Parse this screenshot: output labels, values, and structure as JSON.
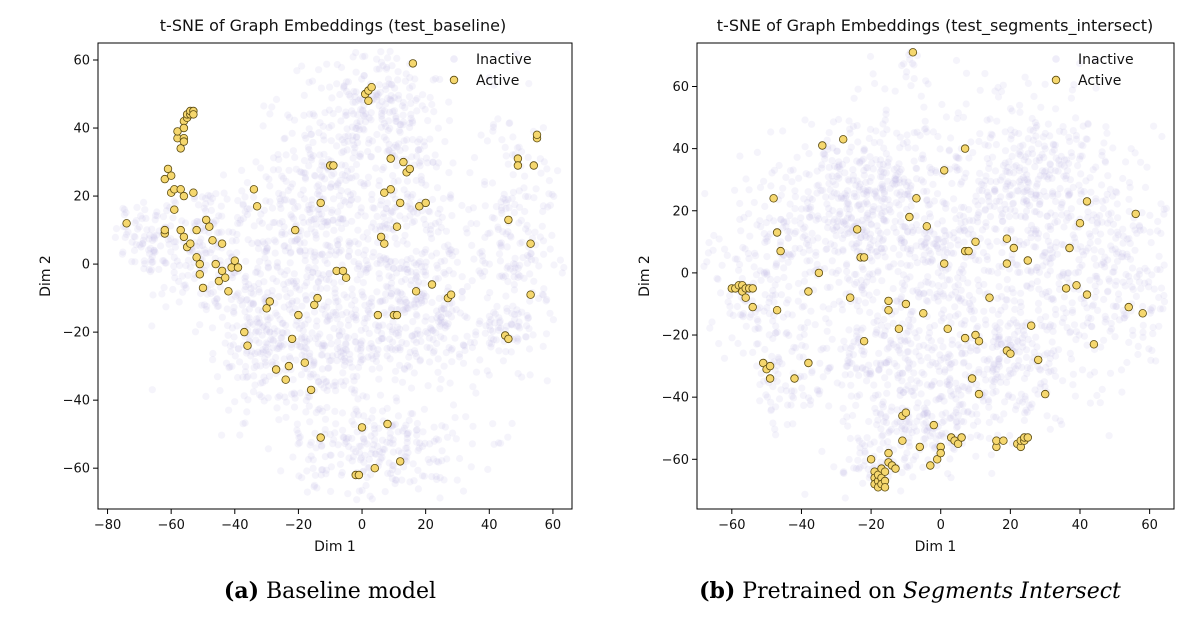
{
  "chart_data": [
    {
      "type": "scatter",
      "title": "t-SNE of Graph Embeddings (test_baseline)",
      "xlabel": "Dim 1",
      "ylabel": "Dim 2",
      "xlim": [
        -83,
        66
      ],
      "ylim": [
        -72,
        65
      ],
      "xticks": [
        -80,
        -60,
        -40,
        -20,
        0,
        20,
        40,
        60
      ],
      "yticks": [
        -60,
        -40,
        -20,
        0,
        20,
        40,
        60
      ],
      "grid": false,
      "legend_placement": "top-right",
      "series": [
        {
          "name": "Inactive",
          "color": "#bfb8e6",
          "count_style": "faint-cloud",
          "clusters": [
            {
              "cx": -68,
              "cy": 8,
              "sx": 5,
              "sy": 6,
              "n": 60
            },
            {
              "cx": -52,
              "cy": 5,
              "sx": 9,
              "sy": 10,
              "n": 160
            },
            {
              "cx": -30,
              "cy": -5,
              "sx": 9,
              "sy": 18,
              "n": 230
            },
            {
              "cx": -12,
              "cy": 20,
              "sx": 9,
              "sy": 16,
              "n": 240
            },
            {
              "cx": 5,
              "cy": 48,
              "sx": 10,
              "sy": 9,
              "n": 170
            },
            {
              "cx": 12,
              "cy": 12,
              "sx": 12,
              "sy": 18,
              "n": 320
            },
            {
              "cx": -12,
              "cy": -25,
              "sx": 10,
              "sy": 12,
              "n": 230
            },
            {
              "cx": 18,
              "cy": -18,
              "sx": 12,
              "sy": 12,
              "n": 240
            },
            {
              "cx": 48,
              "cy": 10,
              "sx": 7,
              "sy": 18,
              "n": 190
            },
            {
              "cx": 45,
              "cy": -20,
              "sx": 4,
              "sy": 5,
              "n": 40
            },
            {
              "cx": 7,
              "cy": -55,
              "sx": 14,
              "sy": 7,
              "n": 220
            },
            {
              "cx": -33,
              "cy": -25,
              "sx": 6,
              "sy": 8,
              "n": 90
            }
          ]
        },
        {
          "name": "Active",
          "color": "#f5d76e",
          "edgecolor": "#5a4a10",
          "points": [
            [
              -74,
              12
            ],
            [
              -62,
              9
            ],
            [
              -62,
              10
            ],
            [
              -62,
              25
            ],
            [
              -61,
              28
            ],
            [
              -60,
              26
            ],
            [
              -60,
              21
            ],
            [
              -59,
              22
            ],
            [
              -59,
              16
            ],
            [
              -58,
              37
            ],
            [
              -58,
              39
            ],
            [
              -57,
              34
            ],
            [
              -56,
              37
            ],
            [
              -56,
              36
            ],
            [
              -56,
              42
            ],
            [
              -56,
              40
            ],
            [
              -55,
              43
            ],
            [
              -55,
              44
            ],
            [
              -54,
              44
            ],
            [
              -54,
              45
            ],
            [
              -53,
              45
            ],
            [
              -53,
              44
            ],
            [
              -57,
              22
            ],
            [
              -56,
              20
            ],
            [
              -57,
              10
            ],
            [
              -56,
              8
            ],
            [
              -55,
              5
            ],
            [
              -54,
              6
            ],
            [
              -53,
              21
            ],
            [
              -52,
              10
            ],
            [
              -52,
              2
            ],
            [
              -51,
              0
            ],
            [
              -51,
              -3
            ],
            [
              -50,
              -7
            ],
            [
              -49,
              13
            ],
            [
              -48,
              11
            ],
            [
              -47,
              7
            ],
            [
              -46,
              0
            ],
            [
              -45,
              -5
            ],
            [
              -44,
              6
            ],
            [
              -44,
              -2
            ],
            [
              -43,
              -4
            ],
            [
              -42,
              -8
            ],
            [
              -41,
              -1
            ],
            [
              -40,
              1
            ],
            [
              -39,
              -1
            ],
            [
              -37,
              -20
            ],
            [
              -36,
              -24
            ],
            [
              -34,
              22
            ],
            [
              -33,
              17
            ],
            [
              -30,
              -13
            ],
            [
              -29,
              -11
            ],
            [
              -27,
              -31
            ],
            [
              -24,
              -34
            ],
            [
              -23,
              -30
            ],
            [
              -22,
              -22
            ],
            [
              -21,
              10
            ],
            [
              -20,
              -15
            ],
            [
              -18,
              -29
            ],
            [
              -16,
              -37
            ],
            [
              -15,
              -12
            ],
            [
              -14,
              -10
            ],
            [
              -13,
              -51
            ],
            [
              -13,
              18
            ],
            [
              -10,
              29
            ],
            [
              -9,
              29
            ],
            [
              -8,
              -2
            ],
            [
              -6,
              -2
            ],
            [
              -5,
              -4
            ],
            [
              -2,
              -62
            ],
            [
              -1,
              -62
            ],
            [
              0,
              -48
            ],
            [
              1,
              50
            ],
            [
              2,
              51
            ],
            [
              2,
              48
            ],
            [
              3,
              52
            ],
            [
              4,
              -60
            ],
            [
              5,
              -15
            ],
            [
              6,
              8
            ],
            [
              7,
              6
            ],
            [
              7,
              21
            ],
            [
              8,
              -47
            ],
            [
              9,
              22
            ],
            [
              9,
              31
            ],
            [
              10,
              -15
            ],
            [
              11,
              -15
            ],
            [
              11,
              11
            ],
            [
              12,
              18
            ],
            [
              12,
              -58
            ],
            [
              13,
              30
            ],
            [
              14,
              27
            ],
            [
              15,
              28
            ],
            [
              16,
              59
            ],
            [
              17,
              -8
            ],
            [
              18,
              17
            ],
            [
              20,
              18
            ],
            [
              22,
              -6
            ],
            [
              27,
              -10
            ],
            [
              28,
              -9
            ],
            [
              45,
              -21
            ],
            [
              46,
              -22
            ],
            [
              46,
              13
            ],
            [
              49,
              31
            ],
            [
              49,
              29
            ],
            [
              53,
              6
            ],
            [
              53,
              -9
            ],
            [
              54,
              29
            ],
            [
              55,
              37
            ],
            [
              55,
              38
            ]
          ]
        }
      ]
    },
    {
      "type": "scatter",
      "title": "t-SNE of Graph Embeddings (test_segments_intersect)",
      "xlabel": "Dim 1",
      "ylabel": "Dim 2",
      "xlim": [
        -70,
        67
      ],
      "ylim": [
        -76,
        74
      ],
      "xticks": [
        -60,
        -40,
        -20,
        0,
        20,
        40,
        60
      ],
      "yticks": [
        -60,
        -40,
        -20,
        0,
        20,
        40,
        60
      ],
      "grid": false,
      "legend_placement": "top-right",
      "series": [
        {
          "name": "Inactive",
          "color": "#bfb8e6",
          "count_style": "faint-cloud",
          "clusters": [
            {
              "cx": -55,
              "cy": -5,
              "sx": 6,
              "sy": 10,
              "n": 90
            },
            {
              "cx": -45,
              "cy": -30,
              "sx": 6,
              "sy": 10,
              "n": 90
            },
            {
              "cx": -40,
              "cy": 15,
              "sx": 10,
              "sy": 14,
              "n": 200
            },
            {
              "cx": -20,
              "cy": 25,
              "sx": 10,
              "sy": 14,
              "n": 260
            },
            {
              "cx": 0,
              "cy": 10,
              "sx": 14,
              "sy": 22,
              "n": 420
            },
            {
              "cx": 25,
              "cy": 30,
              "sx": 12,
              "sy": 14,
              "n": 280
            },
            {
              "cx": 40,
              "cy": 5,
              "sx": 12,
              "sy": 20,
              "n": 280
            },
            {
              "cx": 55,
              "cy": -5,
              "sx": 6,
              "sy": 14,
              "n": 90
            },
            {
              "cx": -15,
              "cy": -30,
              "sx": 10,
              "sy": 12,
              "n": 220
            },
            {
              "cx": 15,
              "cy": -30,
              "sx": 12,
              "sy": 12,
              "n": 240
            },
            {
              "cx": -5,
              "cy": -50,
              "sx": 9,
              "sy": 6,
              "n": 120
            },
            {
              "cx": -18,
              "cy": -62,
              "sx": 5,
              "sy": 5,
              "n": 50
            },
            {
              "cx": -8,
              "cy": 68,
              "sx": 2,
              "sy": 3,
              "n": 12
            }
          ]
        },
        {
          "name": "Active",
          "color": "#f5d76e",
          "edgecolor": "#5a4a10",
          "points": [
            [
              -60,
              -5
            ],
            [
              -59,
              -5
            ],
            [
              -58,
              -4
            ],
            [
              -57,
              -4
            ],
            [
              -57,
              -6
            ],
            [
              -56,
              -5
            ],
            [
              -56,
              -8
            ],
            [
              -55,
              -5
            ],
            [
              -54,
              -5
            ],
            [
              -54,
              -11
            ],
            [
              -51,
              -29
            ],
            [
              -50,
              -31
            ],
            [
              -49,
              -34
            ],
            [
              -49,
              -30
            ],
            [
              -48,
              24
            ],
            [
              -47,
              13
            ],
            [
              -47,
              -12
            ],
            [
              -46,
              7
            ],
            [
              -42,
              -34
            ],
            [
              -38,
              -29
            ],
            [
              -38,
              -6
            ],
            [
              -35,
              0
            ],
            [
              -34,
              41
            ],
            [
              -28,
              43
            ],
            [
              -26,
              -8
            ],
            [
              -24,
              14
            ],
            [
              -23,
              5
            ],
            [
              -22,
              5
            ],
            [
              -22,
              -22
            ],
            [
              -20,
              -60
            ],
            [
              -19,
              -64
            ],
            [
              -19,
              -66
            ],
            [
              -19,
              -68
            ],
            [
              -18,
              -67
            ],
            [
              -18,
              -65
            ],
            [
              -18,
              -69
            ],
            [
              -17,
              -63
            ],
            [
              -17,
              -66
            ],
            [
              -17,
              -68
            ],
            [
              -16,
              -67
            ],
            [
              -16,
              -64
            ],
            [
              -16,
              -69
            ],
            [
              -15,
              -58
            ],
            [
              -15,
              -61
            ],
            [
              -15,
              -12
            ],
            [
              -15,
              -9
            ],
            [
              -14,
              -62
            ],
            [
              -13,
              -63
            ],
            [
              -12,
              -18
            ],
            [
              -11,
              -54
            ],
            [
              -11,
              -46
            ],
            [
              -10,
              -45
            ],
            [
              -10,
              -10
            ],
            [
              -9,
              18
            ],
            [
              -8,
              71
            ],
            [
              -7,
              24
            ],
            [
              -6,
              -56
            ],
            [
              -5,
              -13
            ],
            [
              -4,
              15
            ],
            [
              -3,
              -62
            ],
            [
              -2,
              -49
            ],
            [
              -1,
              -60
            ],
            [
              0,
              -56
            ],
            [
              0,
              -58
            ],
            [
              1,
              33
            ],
            [
              1,
              3
            ],
            [
              2,
              -18
            ],
            [
              3,
              -53
            ],
            [
              4,
              -54
            ],
            [
              5,
              -55
            ],
            [
              6,
              -53
            ],
            [
              7,
              40
            ],
            [
              7,
              7
            ],
            [
              7,
              -21
            ],
            [
              8,
              7
            ],
            [
              9,
              -34
            ],
            [
              10,
              10
            ],
            [
              10,
              -20
            ],
            [
              11,
              -39
            ],
            [
              11,
              -22
            ],
            [
              14,
              -8
            ],
            [
              16,
              -56
            ],
            [
              16,
              -54
            ],
            [
              18,
              -54
            ],
            [
              19,
              11
            ],
            [
              19,
              3
            ],
            [
              19,
              -25
            ],
            [
              20,
              -26
            ],
            [
              21,
              8
            ],
            [
              22,
              -55
            ],
            [
              23,
              -56
            ],
            [
              23,
              -54
            ],
            [
              24,
              -54
            ],
            [
              24,
              -53
            ],
            [
              25,
              -53
            ],
            [
              25,
              4
            ],
            [
              26,
              -17
            ],
            [
              28,
              -28
            ],
            [
              30,
              -39
            ],
            [
              36,
              -5
            ],
            [
              37,
              8
            ],
            [
              39,
              -4
            ],
            [
              40,
              16
            ],
            [
              42,
              23
            ],
            [
              42,
              -7
            ],
            [
              44,
              -23
            ],
            [
              54,
              -11
            ],
            [
              56,
              19
            ],
            [
              58,
              -13
            ]
          ]
        }
      ]
    }
  ],
  "captions": {
    "a_label": "(a)",
    "a_text": " Baseline model",
    "b_label": "(b)",
    "b_text": " Pretrained on ",
    "b_em": "Segments Intersect"
  }
}
